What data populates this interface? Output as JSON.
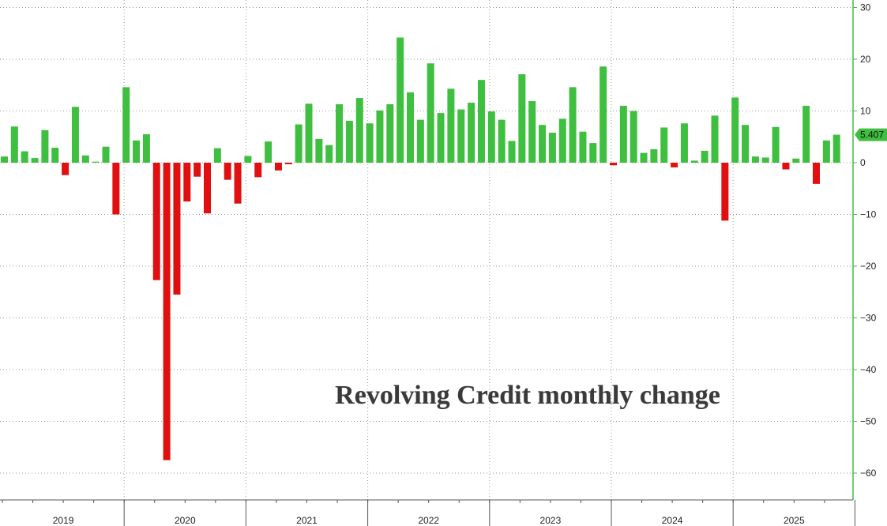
{
  "chart_data": {
    "type": "bar",
    "title": "Revolving Credit monthly change",
    "xlabel": "",
    "ylabel": "",
    "ylim": [
      -65,
      31
    ],
    "yticks": [
      30,
      20,
      10,
      0,
      -10,
      -20,
      -30,
      -40,
      -50,
      -60
    ],
    "year_labels": [
      "2019",
      "2020",
      "2021",
      "2022",
      "2023",
      "2024",
      "2025"
    ],
    "grid": true,
    "positive_color": "#3fbf3f",
    "negative_color": "#e01010",
    "axis_color": "#3fbf3f",
    "last_value_label": "5.407",
    "series": [
      {
        "values": [
          1.2,
          7.0,
          2.2,
          0.9,
          6.3,
          2.9,
          -2.4,
          10.8,
          1.4,
          0.2,
          3.1,
          -10.0,
          14.6,
          4.3,
          5.5,
          -22.7,
          -57.5,
          -25.5,
          -7.5,
          -2.7,
          -9.8,
          2.8,
          -3.3,
          -7.9,
          1.3,
          -2.8,
          4.1,
          -1.5,
          -0.3,
          7.4,
          11.4,
          4.6,
          3.4,
          11.3,
          8.1,
          12.5,
          7.6,
          10.1,
          11.3,
          24.2,
          13.6,
          8.3,
          19.2,
          9.6,
          14.3,
          10.3,
          11.6,
          16.0,
          9.9,
          8.3,
          4.2,
          17.1,
          11.9,
          7.3,
          5.8,
          8.5,
          14.6,
          6.0,
          3.8,
          18.6,
          -0.5,
          11.0,
          10.0,
          1.9,
          2.6,
          6.8,
          -0.9,
          7.6,
          0.4,
          2.3,
          9.1,
          -11.2,
          12.6,
          7.3,
          1.2,
          1.0,
          6.9,
          -1.3,
          0.8,
          11.0,
          -4.1,
          4.3,
          5.407
        ]
      }
    ]
  }
}
